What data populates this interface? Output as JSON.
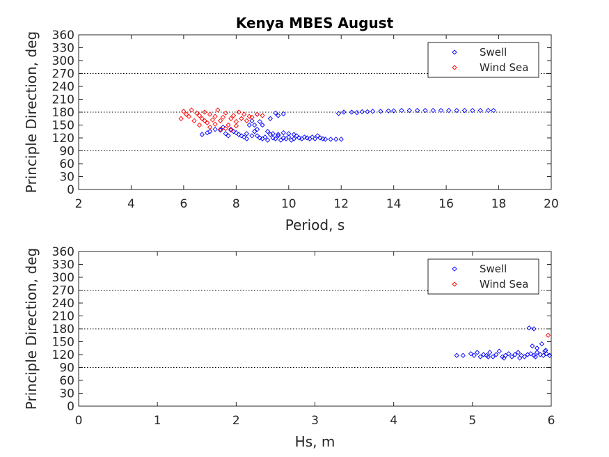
{
  "figure": {
    "title": "Kenya MBES August"
  },
  "chart_data": [
    {
      "type": "scatter",
      "title": "Kenya MBES August",
      "xlabel": "Period, s",
      "ylabel": "Principle Direction, deg",
      "xlim": [
        2,
        20
      ],
      "ylim": [
        0,
        360
      ],
      "xticks": [
        2,
        4,
        6,
        8,
        10,
        12,
        14,
        16,
        18,
        20
      ],
      "yticks": [
        0,
        30,
        60,
        90,
        120,
        150,
        180,
        210,
        240,
        270,
        300,
        330,
        360
      ],
      "reference_lines_y": [
        90,
        180,
        270
      ],
      "grid": false,
      "legend": "top-right",
      "series": [
        {
          "name": "Swell",
          "color": "#0000ff",
          "marker": "diamond",
          "points": [
            [
              6.7,
              128
            ],
            [
              6.9,
              132
            ],
            [
              7.0,
              135
            ],
            [
              7.2,
              140
            ],
            [
              7.4,
              138
            ],
            [
              7.5,
              145
            ],
            [
              7.6,
              130
            ],
            [
              7.7,
              125
            ],
            [
              7.8,
              140
            ],
            [
              7.9,
              135
            ],
            [
              8.0,
              132
            ],
            [
              8.1,
              128
            ],
            [
              8.2,
              125
            ],
            [
              8.3,
              122
            ],
            [
              8.4,
              130
            ],
            [
              8.5,
              150
            ],
            [
              8.6,
              160
            ],
            [
              8.7,
              135
            ],
            [
              8.8,
              125
            ],
            [
              8.9,
              120
            ],
            [
              9.0,
              118
            ],
            [
              9.1,
              122
            ],
            [
              9.2,
              115
            ],
            [
              9.3,
              128
            ],
            [
              9.4,
              120
            ],
            [
              9.5,
              118
            ],
            [
              9.6,
              125
            ],
            [
              9.7,
              115
            ],
            [
              9.8,
              120
            ],
            [
              9.9,
              118
            ],
            [
              10.0,
              122
            ],
            [
              10.1,
              115
            ],
            [
              10.2,
              118
            ],
            [
              10.3,
              125
            ],
            [
              10.4,
              120
            ],
            [
              10.5,
              118
            ],
            [
              10.6,
              122
            ],
            [
              10.7,
              120
            ],
            [
              10.8,
              118
            ],
            [
              10.9,
              122
            ],
            [
              11.0,
              118
            ],
            [
              11.1,
              125
            ],
            [
              11.2,
              120
            ],
            [
              11.3,
              118
            ],
            [
              11.4,
              117
            ],
            [
              11.6,
              117
            ],
            [
              11.8,
              117
            ],
            [
              12.0,
              117
            ],
            [
              8.4,
              118
            ],
            [
              8.6,
              125
            ],
            [
              8.8,
              140
            ],
            [
              9.0,
              150
            ],
            [
              9.2,
              135
            ],
            [
              9.4,
              130
            ],
            [
              9.6,
              128
            ],
            [
              9.8,
              132
            ],
            [
              10.0,
              130
            ],
            [
              10.2,
              128
            ],
            [
              8.7,
              150
            ],
            [
              8.9,
              158
            ],
            [
              9.3,
              165
            ],
            [
              9.6,
              172
            ],
            [
              8.8,
              175
            ],
            [
              9.5,
              178
            ],
            [
              9.8,
              176
            ],
            [
              11.9,
              177
            ],
            [
              12.1,
              180
            ],
            [
              12.4,
              180
            ],
            [
              12.6,
              179
            ],
            [
              12.8,
              181
            ],
            [
              13.0,
              181
            ],
            [
              13.2,
              182
            ],
            [
              13.5,
              182
            ],
            [
              13.8,
              183
            ],
            [
              14.0,
              183
            ],
            [
              14.3,
              184
            ],
            [
              14.6,
              184
            ],
            [
              14.9,
              184
            ],
            [
              15.2,
              184
            ],
            [
              15.5,
              184
            ],
            [
              15.8,
              184
            ],
            [
              16.1,
              184
            ],
            [
              16.4,
              184
            ],
            [
              16.7,
              184
            ],
            [
              17.0,
              184
            ],
            [
              17.3,
              184
            ],
            [
              17.6,
              184
            ],
            [
              17.8,
              184
            ]
          ]
        },
        {
          "name": "Wind Sea",
          "color": "#ff0000",
          "marker": "diamond",
          "points": [
            [
              5.9,
              165
            ],
            [
              6.0,
              182
            ],
            [
              6.1,
              175
            ],
            [
              6.2,
              170
            ],
            [
              6.3,
              185
            ],
            [
              6.4,
              160
            ],
            [
              6.5,
              178
            ],
            [
              6.6,
              172
            ],
            [
              6.7,
              165
            ],
            [
              6.8,
              180
            ],
            [
              6.9,
              155
            ],
            [
              7.0,
              175
            ],
            [
              7.1,
              162
            ],
            [
              7.2,
              170
            ],
            [
              7.3,
              185
            ],
            [
              7.4,
              160
            ],
            [
              7.5,
              168
            ],
            [
              7.6,
              178
            ],
            [
              7.7,
              150
            ],
            [
              7.8,
              165
            ],
            [
              7.9,
              172
            ],
            [
              8.0,
              158
            ],
            [
              8.1,
              180
            ],
            [
              8.2,
              165
            ],
            [
              8.3,
              175
            ],
            [
              8.4,
              160
            ],
            [
              8.5,
              170
            ],
            [
              8.6,
              168
            ],
            [
              8.8,
              175
            ],
            [
              9.0,
              172
            ],
            [
              6.6,
              150
            ],
            [
              6.8,
              160
            ],
            [
              7.0,
              145
            ],
            [
              7.2,
              152
            ],
            [
              7.4,
              140
            ],
            [
              7.6,
              142
            ],
            [
              7.8,
              138
            ],
            [
              8.0,
              148
            ]
          ]
        }
      ]
    },
    {
      "type": "scatter",
      "xlabel": "Hs, m",
      "ylabel": "Principle Direction, deg",
      "xlim": [
        0,
        6
      ],
      "ylim": [
        0,
        360
      ],
      "xticks": [
        0,
        1,
        2,
        3,
        4,
        5,
        6
      ],
      "yticks": [
        0,
        30,
        60,
        90,
        120,
        150,
        180,
        210,
        240,
        270,
        300,
        330,
        360
      ],
      "reference_lines_y": [
        90,
        180,
        270
      ],
      "grid": false,
      "legend": "top-right",
      "series": [
        {
          "name": "Swell",
          "color": "#0000ff",
          "marker": "diamond",
          "points": [
            [
              4.8,
              118
            ],
            [
              4.88,
              118
            ],
            [
              4.98,
              122
            ],
            [
              5.02,
              118
            ],
            [
              5.06,
              125
            ],
            [
              5.1,
              115
            ],
            [
              5.14,
              120
            ],
            [
              5.18,
              118
            ],
            [
              5.22,
              125
            ],
            [
              5.26,
              115
            ],
            [
              5.3,
              120
            ],
            [
              5.34,
              128
            ],
            [
              5.38,
              115
            ],
            [
              5.42,
              118
            ],
            [
              5.46,
              122
            ],
            [
              5.5,
              115
            ],
            [
              5.54,
              120
            ],
            [
              5.58,
              125
            ],
            [
              5.62,
              118
            ],
            [
              5.66,
              115
            ],
            [
              5.7,
              120
            ],
            [
              5.74,
              122
            ],
            [
              5.78,
              118
            ],
            [
              5.82,
              125
            ],
            [
              5.86,
              120
            ],
            [
              5.9,
              118
            ],
            [
              5.94,
              122
            ],
            [
              5.98,
              118
            ],
            [
              5.2,
              115
            ],
            [
              5.4,
              112
            ],
            [
              5.6,
              112
            ],
            [
              5.8,
              115
            ],
            [
              5.92,
              128
            ],
            [
              5.72,
              182
            ],
            [
              5.78,
              180
            ],
            [
              5.76,
              140
            ],
            [
              5.82,
              135
            ],
            [
              5.88,
              145
            ],
            [
              5.93,
              130
            ]
          ]
        },
        {
          "name": "Wind Sea",
          "color": "#ff0000",
          "marker": "diamond",
          "points": [
            [
              5.96,
              165
            ]
          ]
        }
      ]
    }
  ]
}
